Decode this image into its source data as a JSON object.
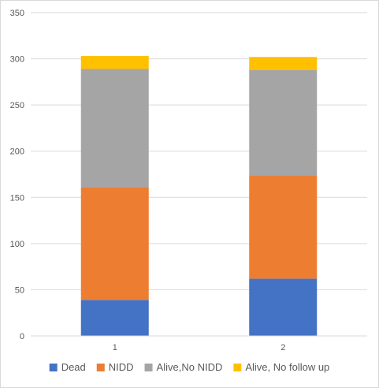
{
  "chart_data": {
    "type": "bar",
    "stacked": true,
    "categories": [
      "1",
      "2"
    ],
    "series": [
      {
        "name": "Dead",
        "values": [
          39,
          62
        ],
        "color": "#4472C4"
      },
      {
        "name": "NIDD",
        "values": [
          122,
          112
        ],
        "color": "#ED7D31"
      },
      {
        "name": "Alive,No NIDD",
        "values": [
          128,
          114
        ],
        "color": "#A5A5A5"
      },
      {
        "name": "Alive, No follow up",
        "values": [
          14,
          14
        ],
        "color": "#FFC000"
      }
    ],
    "ylim": [
      0,
      350
    ],
    "yticks": [
      0,
      50,
      100,
      150,
      200,
      250,
      300,
      350
    ],
    "grid": true,
    "legend_position": "bottom",
    "title": "",
    "xlabel": "",
    "ylabel": ""
  }
}
